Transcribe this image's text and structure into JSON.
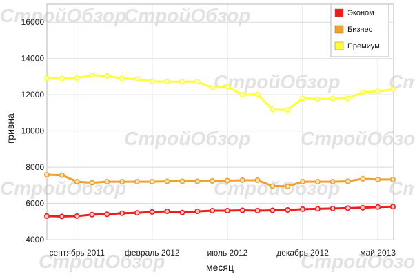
{
  "chart_data": {
    "type": "line",
    "xlabel": "месяц",
    "ylabel": "гривна",
    "ylim": [
      4000,
      17000
    ],
    "yticks": [
      4000,
      6000,
      8000,
      10000,
      12000,
      14000,
      16000
    ],
    "x_tick_labels": [
      {
        "index": 2,
        "label": "сентябрь 2011"
      },
      {
        "index": 7,
        "label": "февраль 2012"
      },
      {
        "index": 12,
        "label": "июль 2012"
      },
      {
        "index": 17,
        "label": "декабрь 2012"
      },
      {
        "index": 22,
        "label": "май 2013"
      }
    ],
    "grid": true,
    "legend_position": "top-right",
    "series": [
      {
        "name": "Эконом",
        "color": "#ee1c1c",
        "marker_fill": "#ffcccc",
        "values": [
          5300,
          5280,
          5300,
          5380,
          5400,
          5460,
          5480,
          5530,
          5560,
          5500,
          5560,
          5600,
          5600,
          5620,
          5600,
          5620,
          5640,
          5680,
          5700,
          5720,
          5740,
          5760,
          5800,
          5820
        ]
      },
      {
        "name": "Бизнес",
        "color": "#f0a030",
        "marker_fill": "#ffe8b0",
        "values": [
          7580,
          7560,
          7200,
          7140,
          7200,
          7200,
          7200,
          7200,
          7220,
          7220,
          7220,
          7240,
          7260,
          7280,
          7280,
          6960,
          6940,
          7200,
          7200,
          7200,
          7220,
          7360,
          7320,
          7320
        ]
      },
      {
        "name": "Премиум",
        "color": "#ffff33",
        "marker_fill": "#ffffcc",
        "values": [
          12900,
          12900,
          12920,
          13080,
          13040,
          12900,
          12860,
          12740,
          12720,
          12720,
          12720,
          12380,
          12440,
          12000,
          12020,
          11180,
          11160,
          11800,
          11760,
          11780,
          11800,
          12140,
          12180,
          12300
        ]
      }
    ],
    "watermark": "СтройОбзор"
  }
}
